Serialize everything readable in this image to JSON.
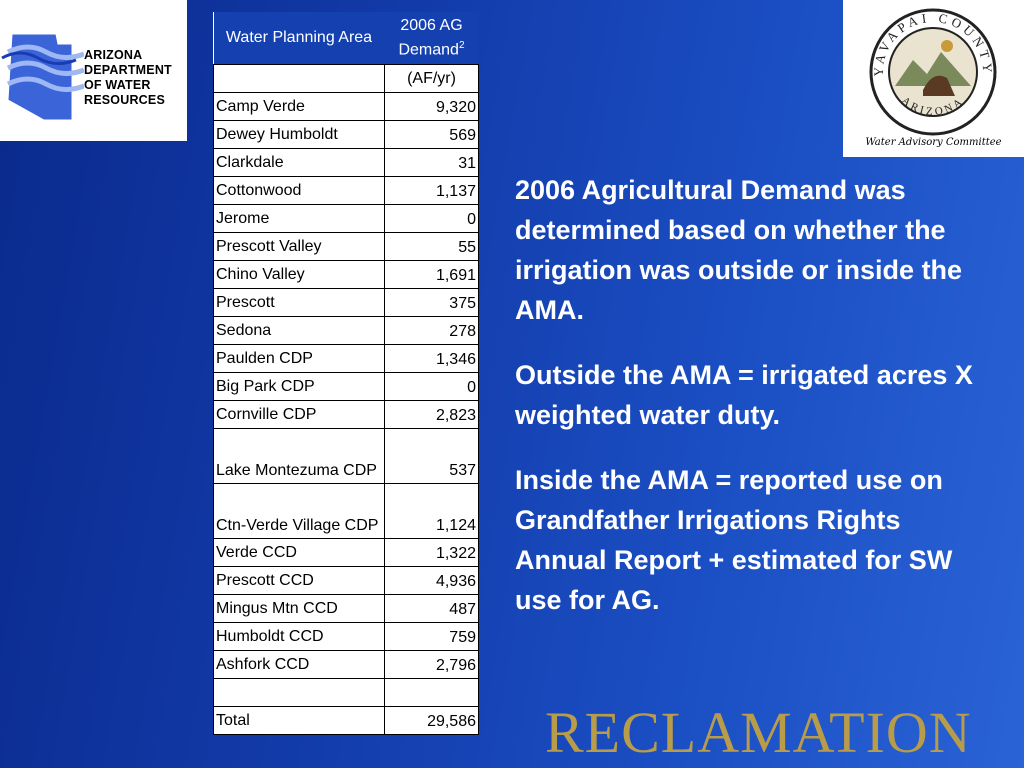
{
  "logos": {
    "adwr": {
      "lines": [
        "ARIZONA",
        "DEPARTMENT",
        "OF WATER",
        "RESOURCES"
      ],
      "icon": "arizona-state-map-icon"
    },
    "yavapai": {
      "seal_top": "YAVAPAI COUNTY",
      "seal_bottom": "ARIZONA",
      "caption": "Water Advisory Committee",
      "icon": "county-seal-icon"
    }
  },
  "table": {
    "header": {
      "area": "Water Planning Area",
      "demand": "2006 AG Demand",
      "demand_sup": "2",
      "unit": "(AF/yr)"
    },
    "rows": [
      {
        "area": "Camp Verde",
        "value": "9,320"
      },
      {
        "area": "Dewey Humboldt",
        "value": "569"
      },
      {
        "area": "Clarkdale",
        "value": "31"
      },
      {
        "area": "Cottonwood",
        "value": "1,137"
      },
      {
        "area": "Jerome",
        "value": "0"
      },
      {
        "area": "Prescott Valley",
        "value": "55"
      },
      {
        "area": "Chino Valley",
        "value": "1,691"
      },
      {
        "area": "Prescott",
        "value": "375"
      },
      {
        "area": "Sedona",
        "value": "278"
      },
      {
        "area": "Paulden CDP",
        "value": "1,346"
      },
      {
        "area": "Big Park CDP",
        "value": "0"
      },
      {
        "area": "Cornville CDP",
        "value": "2,823"
      },
      {
        "area": "Lake Montezuma CDP",
        "value": "537"
      },
      {
        "area": "Ctn-Verde Village CDP",
        "value": "1,124"
      },
      {
        "area": "Verde CCD",
        "value": "1,322"
      },
      {
        "area": "Prescott CCD",
        "value": "4,936"
      },
      {
        "area": "Mingus Mtn CCD",
        "value": "487"
      },
      {
        "area": "Humboldt CCD",
        "value": "759"
      },
      {
        "area": "Ashfork CCD",
        "value": "2,796"
      },
      {
        "area": "",
        "value": ""
      }
    ],
    "total": {
      "area": "Total",
      "value": "29,586"
    }
  },
  "notes": [
    "2006 Agricultural Demand was determined based on whether the irrigation was outside or inside the AMA.",
    "Outside the AMA = irrigated acres X weighted water duty.",
    "Inside the AMA = reported use on Grandfather Irrigations Rights Annual Report + estimated for SW use for AG."
  ],
  "footer_brand": "RECLAMATION",
  "colors": {
    "background": "#123aa8",
    "header_cell": "#1540b0",
    "brand_gold": "#b99c4a"
  }
}
